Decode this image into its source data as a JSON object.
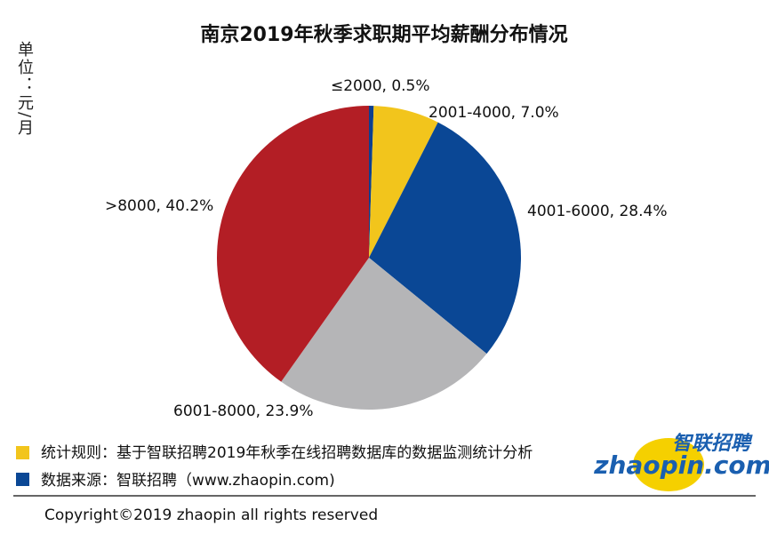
{
  "chart_data": {
    "type": "pie",
    "title": "南京2019年秋季求职期平均薪酬分布情况",
    "unit_label": "单位：元/月",
    "categories": [
      "≤2000",
      "2001-4000",
      "4001-6000",
      "6001-8000",
      ">8000"
    ],
    "values": [
      0.5,
      7.0,
      28.4,
      23.9,
      40.2
    ],
    "value_labels": [
      "0.5%",
      "7.0%",
      "28.4%",
      "23.9%",
      "40.2%"
    ],
    "label_separator": ", ",
    "colors": [
      "#0d3f8f",
      "#f2c51c",
      "#0a4795",
      "#b5b5b7",
      "#b31e25"
    ]
  },
  "notes": [
    {
      "text": "统计规则：基于智联招聘2019年秋季在线招聘数据库的数据监测统计分析",
      "color": "#f2c51c"
    },
    {
      "text": "数据来源：智联招聘（www.zhaopin.com)",
      "color": "#0a4795"
    }
  ],
  "logo": {
    "name": "智联招聘",
    "domain": "zhaopin.com"
  },
  "copyright": "Copyright©2019 zhaopin all rights reserved"
}
